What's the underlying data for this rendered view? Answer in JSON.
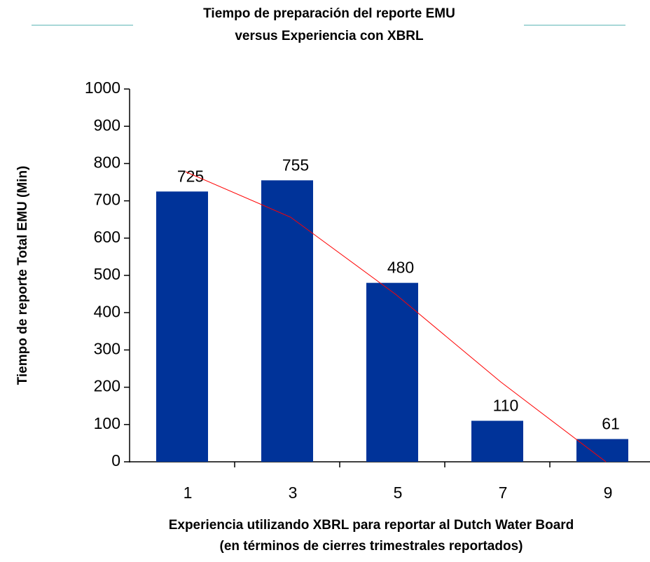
{
  "chart_data": {
    "type": "bar",
    "title": [
      "Tiempo de preparación del reporte EMU",
      "versus Experiencia con XBRL"
    ],
    "x_label": [
      "Experiencia utilizando XBRL para reportar al Dutch Water Board",
      "(en términos de cierres trimestrales reportados)"
    ],
    "y_label": "Tiempo de reporte Total EMU (Min)",
    "categories": [
      "1",
      "3",
      "5",
      "7",
      "9"
    ],
    "values": [
      725,
      755,
      480,
      110,
      61
    ],
    "color": "#003399",
    "trendline": {
      "color": "#ff0000",
      "values": [
        778,
        656,
        449,
        214,
        0
      ]
    },
    "ylim": [
      0,
      1000
    ],
    "yticks": [
      0,
      100,
      200,
      300,
      400,
      500,
      600,
      700,
      800,
      900,
      1000
    ],
    "grid": false
  }
}
